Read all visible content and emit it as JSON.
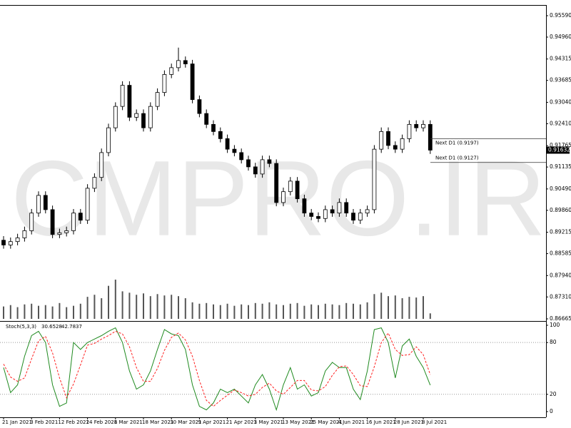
{
  "chart_data": [
    {
      "type": "candlestick",
      "watermark": "CMPRO.IR",
      "categories": [
        "21 Jan 2021",
        null,
        null,
        null,
        "3 Feb 2021",
        null,
        null,
        null,
        "12 Feb 2021",
        null,
        null,
        null,
        "24 Feb 2021",
        null,
        null,
        null,
        "8 Mar 2021",
        null,
        null,
        null,
        "18 Mar 2021",
        null,
        null,
        null,
        "30 Mar 2021",
        null,
        null,
        null,
        "9 Apr 2021",
        null,
        null,
        null,
        "21 Apr 2021",
        null,
        null,
        null,
        "3 May 2021",
        null,
        null,
        null,
        "13 May 2021",
        null,
        null,
        null,
        "25 May 2021",
        null,
        null,
        null,
        "4 Jun 2021",
        null,
        null,
        null,
        "16 Jun 2021",
        null,
        null,
        null,
        "28 Jun 2021",
        null,
        null,
        null,
        "8 Jul 2021",
        null
      ],
      "open": [
        0.8898,
        0.8884,
        0.8894,
        0.8905,
        0.8926,
        0.8978,
        0.903,
        0.8988,
        0.8915,
        0.892,
        0.8926,
        0.8978,
        0.8957,
        0.9051,
        0.9083,
        0.9156,
        0.9229,
        0.9292,
        0.9354,
        0.926,
        0.9271,
        0.9229,
        0.9292,
        0.9333,
        0.9386,
        0.9406,
        0.9427,
        0.9417,
        0.9312,
        0.9271,
        0.9239,
        0.9218,
        0.9197,
        0.9166,
        0.9156,
        0.9135,
        0.9114,
        0.9093,
        0.9135,
        0.9124,
        0.9009,
        0.9041,
        0.9072,
        0.902,
        0.8978,
        0.8968,
        0.8962,
        0.8988,
        0.8978,
        0.9009,
        0.8978,
        0.8957,
        0.8978,
        0.8988,
        0.9166,
        0.9218,
        0.9177,
        0.9166,
        0.9197,
        0.9239,
        0.9229,
        0.9239
      ],
      "high": [
        0.891,
        0.8906,
        0.8917,
        0.8938,
        0.899,
        0.9042,
        0.9042,
        0.9,
        0.8932,
        0.8938,
        0.899,
        0.899,
        0.9063,
        0.9095,
        0.9168,
        0.9241,
        0.9304,
        0.9366,
        0.9366,
        0.9283,
        0.9283,
        0.9304,
        0.9345,
        0.9398,
        0.9418,
        0.9465,
        0.9439,
        0.9429,
        0.9324,
        0.9283,
        0.9251,
        0.923,
        0.9209,
        0.9178,
        0.9168,
        0.9147,
        0.9126,
        0.9147,
        0.9147,
        0.9136,
        0.9053,
        0.9084,
        0.9084,
        0.9032,
        0.899,
        0.898,
        0.9,
        0.9,
        0.9021,
        0.9021,
        0.899,
        0.899,
        0.9,
        0.9178,
        0.923,
        0.923,
        0.9189,
        0.9209,
        0.9251,
        0.9251,
        0.9251,
        0.9251
      ],
      "low": [
        0.8873,
        0.8873,
        0.8883,
        0.8894,
        0.8915,
        0.8967,
        0.8977,
        0.8904,
        0.8904,
        0.8909,
        0.8915,
        0.8946,
        0.8946,
        0.904,
        0.9072,
        0.9145,
        0.9218,
        0.9281,
        0.9249,
        0.9249,
        0.9218,
        0.9218,
        0.9281,
        0.9322,
        0.9375,
        0.9395,
        0.9406,
        0.9301,
        0.926,
        0.9228,
        0.9207,
        0.9186,
        0.9155,
        0.9145,
        0.9124,
        0.9103,
        0.9082,
        0.9082,
        0.9113,
        0.8998,
        0.8998,
        0.903,
        0.9009,
        0.8967,
        0.8957,
        0.8951,
        0.8951,
        0.8967,
        0.8967,
        0.8967,
        0.8946,
        0.8946,
        0.8967,
        0.8977,
        0.9155,
        0.9166,
        0.9155,
        0.9155,
        0.9186,
        0.9218,
        0.9218,
        0.9152
      ],
      "close": [
        0.8884,
        0.8894,
        0.8905,
        0.8926,
        0.8978,
        0.903,
        0.8988,
        0.8915,
        0.892,
        0.8926,
        0.8978,
        0.8957,
        0.9051,
        0.9083,
        0.9156,
        0.9229,
        0.9292,
        0.9354,
        0.926,
        0.9271,
        0.9229,
        0.9292,
        0.9333,
        0.9386,
        0.9406,
        0.9427,
        0.9417,
        0.9312,
        0.9271,
        0.9239,
        0.9218,
        0.9197,
        0.9166,
        0.9156,
        0.9135,
        0.9114,
        0.9093,
        0.9135,
        0.9124,
        0.9009,
        0.9041,
        0.9072,
        0.902,
        0.8978,
        0.8968,
        0.8962,
        0.8988,
        0.8978,
        0.9009,
        0.8978,
        0.8957,
        0.8978,
        0.8988,
        0.9166,
        0.9218,
        0.9177,
        0.9166,
        0.9197,
        0.9239,
        0.9229,
        0.9239,
        0.91632
      ],
      "volume": [
        18,
        20,
        17,
        21,
        22,
        19,
        20,
        18,
        23,
        17,
        19,
        22,
        32,
        35,
        30,
        48,
        57,
        40,
        38,
        35,
        37,
        33,
        36,
        34,
        35,
        33,
        30,
        24,
        22,
        23,
        21,
        20,
        22,
        19,
        21,
        20,
        23,
        22,
        24,
        21,
        20,
        22,
        23,
        19,
        21,
        20,
        22,
        21,
        20,
        23,
        22,
        21,
        24,
        36,
        38,
        33,
        34,
        30,
        32,
        31,
        33,
        8
      ],
      "ylim": [
        0.86623,
        0.95884
      ],
      "yticks": [
        {
          "value": 0.9559,
          "label": "0.95590"
        },
        {
          "value": 0.9496,
          "label": "0.94960"
        },
        0.94315,
        0.93685,
        {
          "value": 0.9304,
          "label": "0.93040"
        },
        {
          "value": 0.9241,
          "label": "0.92410"
        },
        0.91765,
        0.91135,
        {
          "value": 0.9049,
          "label": "0.90490"
        },
        {
          "value": 0.8986,
          "label": "0.89860"
        },
        0.89215,
        0.88585,
        {
          "value": 0.8794,
          "label": "0.87940"
        },
        {
          "value": 0.8731,
          "label": "0.87310"
        },
        0.86665
      ],
      "annotations": [
        {
          "label": "Next D1 (0.9197)",
          "value": 0.9197
        },
        {
          "label": "Next D1 (0.9127)",
          "value": 0.9127
        }
      ]
    },
    {
      "type": "line",
      "title": "Stoch(5,3,3)",
      "series": [
        {
          "color": "#1f8a1f",
          "values": [
            51,
            22,
            31,
            64,
            88,
            93,
            80,
            31,
            6,
            10,
            80,
            72,
            80,
            84,
            88,
            93,
            97,
            80,
            47,
            26,
            31,
            47,
            72,
            95,
            90,
            88,
            72,
            31,
            6,
            2,
            10,
            26,
            22,
            26,
            18,
            10,
            31,
            43,
            26,
            2,
            31,
            51,
            26,
            31,
            18,
            22,
            47,
            57,
            51,
            51,
            26,
            14,
            47,
            95,
            97,
            80,
            39,
            76,
            84,
            64,
            51,
            30.6528
          ]
        },
        {
          "color": "#ff2020",
          "dashed": true,
          "values": [
            55,
            40,
            35,
            39,
            61,
            82,
            87,
            68,
            39,
            16,
            32,
            54,
            77,
            79,
            84,
            88,
            93,
            90,
            75,
            51,
            35,
            35,
            50,
            71,
            86,
            91,
            83,
            64,
            36,
            13,
            6,
            13,
            19,
            25,
            22,
            18,
            20,
            28,
            33,
            24,
            20,
            28,
            36,
            36,
            25,
            24,
            29,
            42,
            52,
            53,
            43,
            30,
            29,
            52,
            80,
            91,
            72,
            65,
            66,
            75,
            66,
            42.7837
          ]
        }
      ],
      "ylim": [
        -6.6,
        104.1
      ],
      "yticks": [
        0,
        20,
        80,
        100
      ],
      "levels": [
        20,
        80
      ]
    }
  ]
}
